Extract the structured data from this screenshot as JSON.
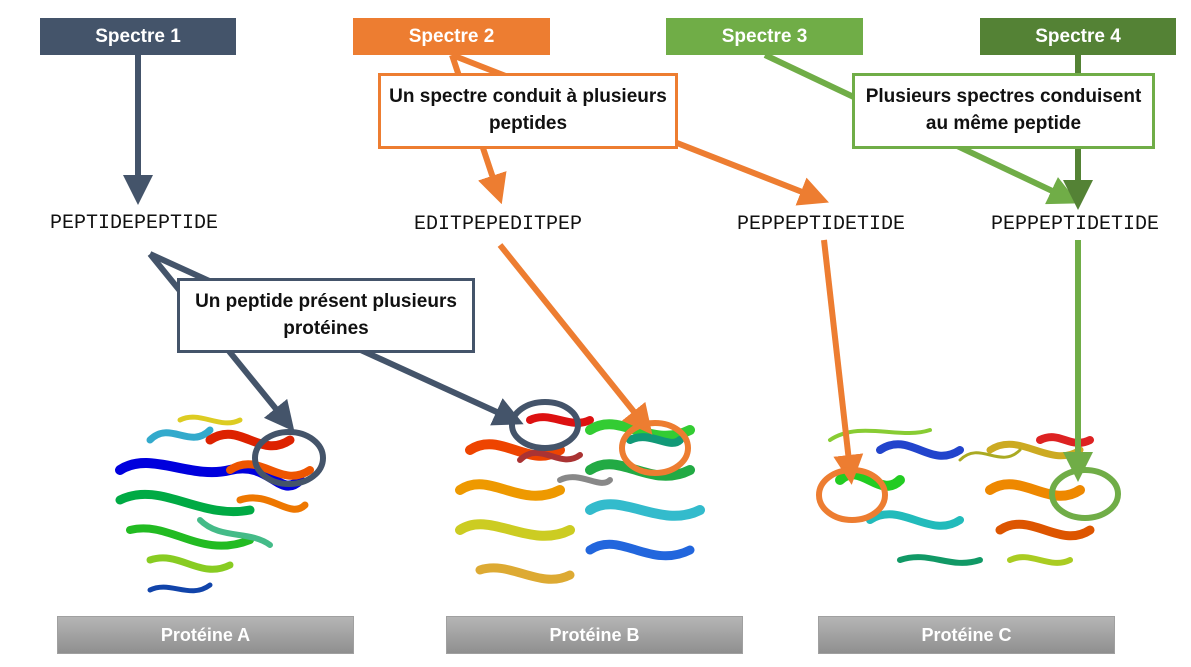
{
  "spectra": {
    "s1": "Spectre 1",
    "s2": "Spectre 2",
    "s3": "Spectre 3",
    "s4": "Spectre 4"
  },
  "peptides": {
    "p1": "PEPTIDEPEPTIDE",
    "p2": "EDITPEPEDITPEP",
    "p3": "PEPPEPTIDETIDE",
    "p4": "PEPPEPTIDETIDE"
  },
  "callouts": {
    "one_spectrum_many_peptides": "Un spectre conduit à plusieurs peptides",
    "many_spectra_same_peptide": "Plusieurs spectres conduisent au même peptide",
    "one_peptide_many_proteins": "Un peptide présent plusieurs protéines"
  },
  "proteins": {
    "a": "Protéine A",
    "b": "Protéine B",
    "c": "Protéine C"
  },
  "colors": {
    "spectre1": "#44546a",
    "spectre2": "#ed7d31",
    "spectre3": "#70ad47",
    "spectre4": "#548235"
  }
}
